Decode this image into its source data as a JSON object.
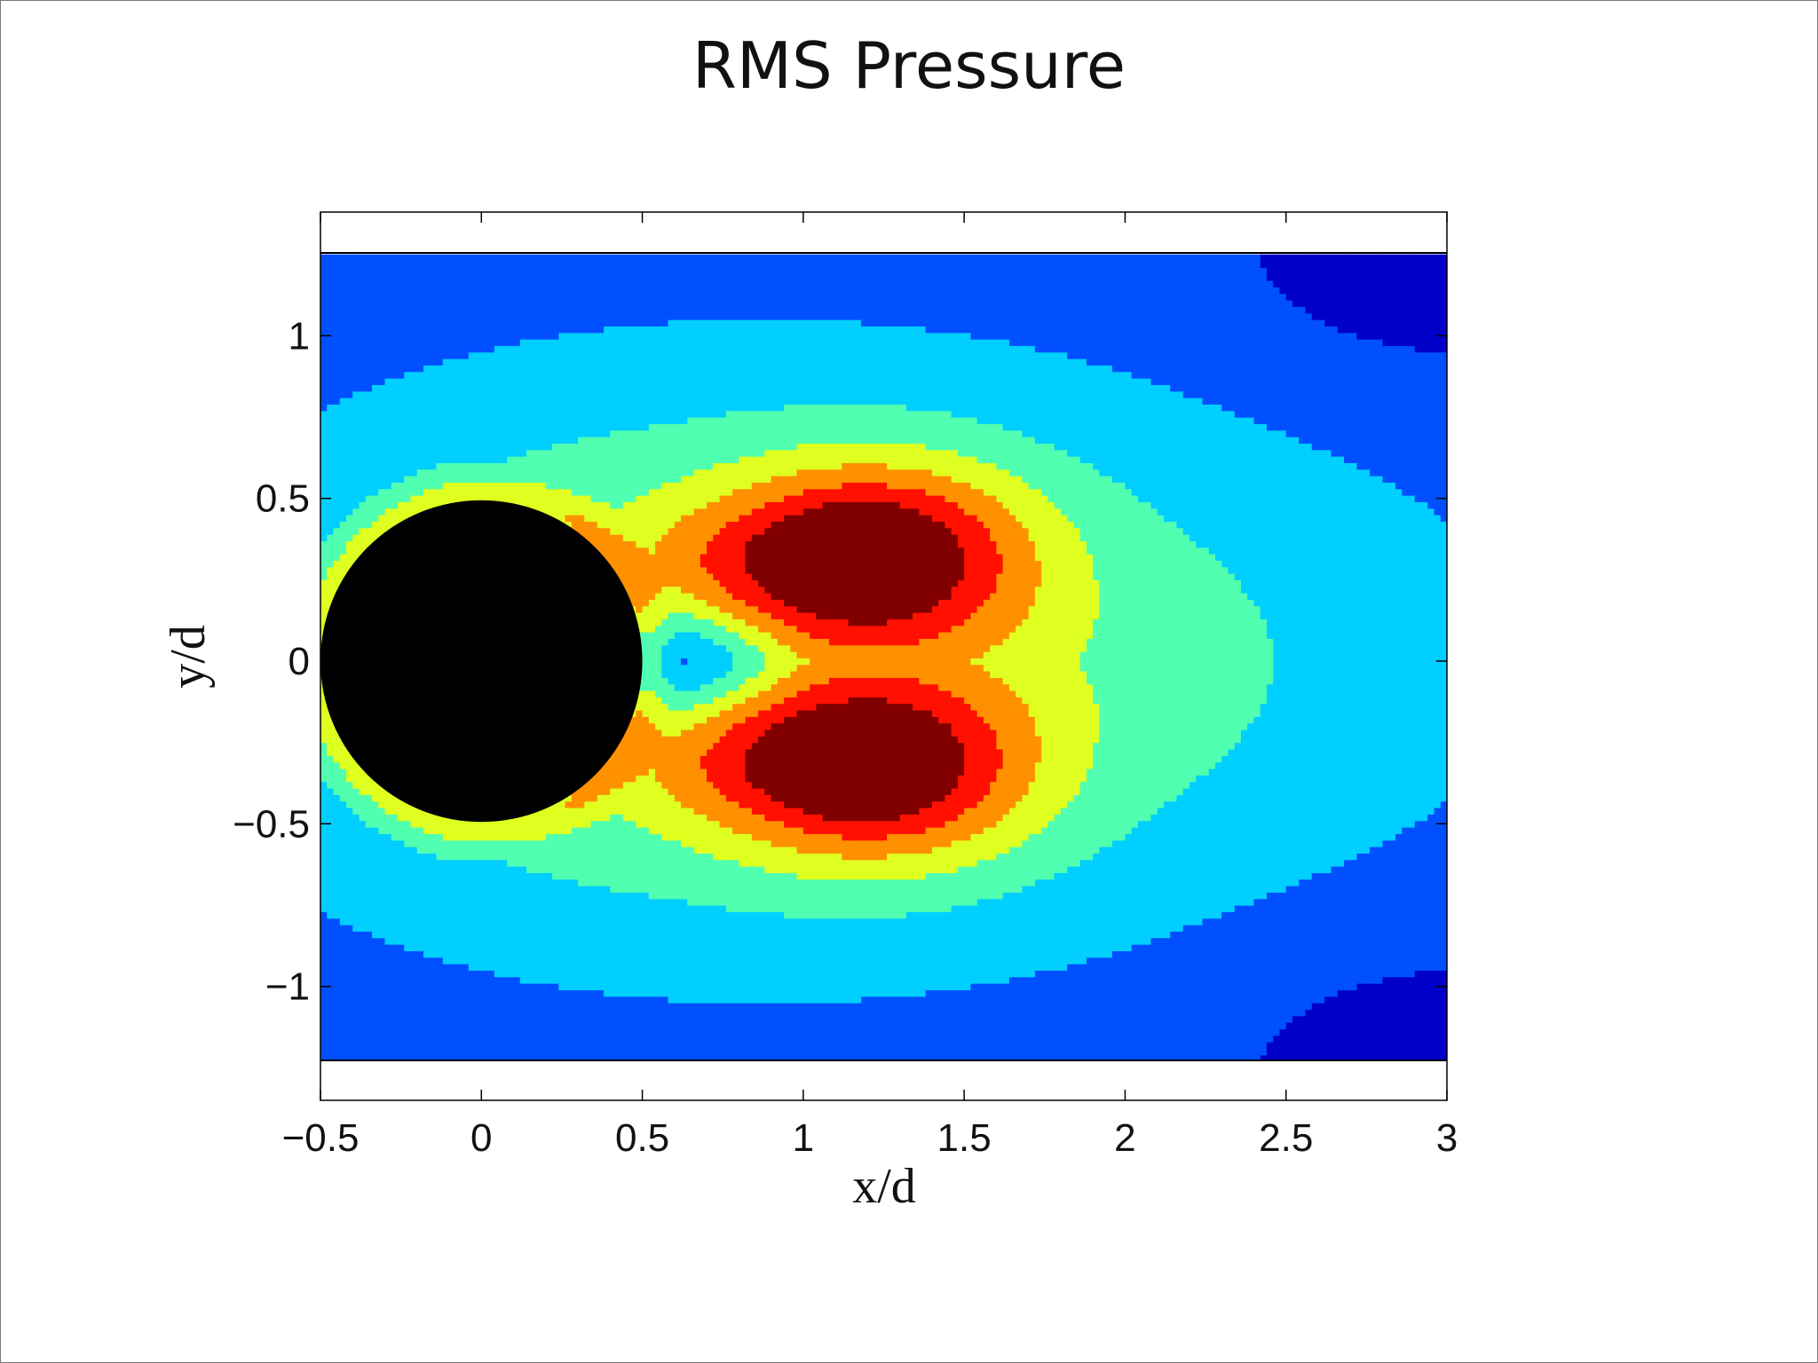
{
  "page": {
    "title": "RMS Pressure"
  },
  "chart_data": {
    "type": "contour",
    "title": "RMS Pressure",
    "xlabel": "x/d",
    "ylabel": "y/d",
    "xlim": [
      -0.5,
      3
    ],
    "ylim": [
      -1.35,
      1.38
    ],
    "field_extent": {
      "x": [
        -0.5,
        3
      ],
      "y": [
        -1.25,
        1.25
      ]
    },
    "xticks": [
      -0.5,
      0,
      0.5,
      1,
      1.5,
      2,
      2.5,
      3
    ],
    "xtick_labels": [
      "−0.5",
      "0",
      "0.5",
      "1",
      "1.5",
      "2",
      "2.5",
      "3"
    ],
    "yticks": [
      -1,
      -0.5,
      0,
      0.5,
      1
    ],
    "ytick_labels": [
      "−1",
      "−0.5",
      "0",
      "0.5",
      "1"
    ],
    "colorbar": false,
    "grid": false,
    "colormap": "jet",
    "levels": 9,
    "level_colors": [
      "#00008f",
      "#0000c8",
      "#0050ff",
      "#00cfff",
      "#50ffb0",
      "#dfff20",
      "#ff9000",
      "#ff1000",
      "#800000"
    ],
    "obstacle": {
      "shape": "circle",
      "center": [
        0,
        0
      ],
      "diameter": 1,
      "color": "#000000"
    },
    "regions": [
      {
        "name": "lobe-upper",
        "center": [
          1.3,
          0.32
        ],
        "peak_center": [
          1.12,
          0.33
        ],
        "peak_level": 8
      },
      {
        "name": "lobe-lower",
        "center": [
          1.3,
          -0.32
        ],
        "peak_center": [
          1.12,
          -0.33
        ],
        "peak_level": 8
      },
      {
        "name": "recirculation",
        "center": [
          0.65,
          0.0
        ],
        "min_level": 1
      },
      {
        "name": "wake-tail",
        "center": [
          2.6,
          0.0
        ],
        "level": 4
      }
    ]
  }
}
